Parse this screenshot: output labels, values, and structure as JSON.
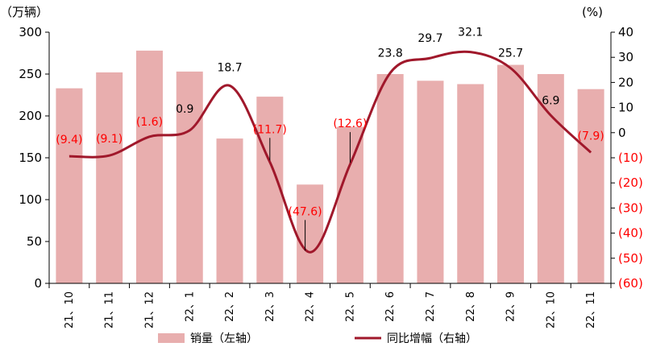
{
  "chart_data": {
    "type": "bar+line",
    "categories": [
      "21、10",
      "21、11",
      "21、12",
      "22、1",
      "22、2",
      "22、3",
      "22、4",
      "22、5",
      "22、6",
      "22、7",
      "22、8",
      "22、9",
      "22、10",
      "22、11"
    ],
    "series": [
      {
        "name": "销量（左轴）",
        "type": "bar",
        "axis": "left",
        "color": "#e8aeae",
        "values": [
          233,
          252,
          278,
          253,
          173,
          223,
          118,
          187,
          250,
          242,
          238,
          261,
          250,
          232
        ]
      },
      {
        "name": "同比增幅（右轴）",
        "type": "line",
        "axis": "right",
        "color": "#a0182b",
        "values": [
          -9.4,
          -9.1,
          -1.6,
          0.9,
          18.7,
          -11.7,
          -47.6,
          -12.6,
          23.8,
          29.7,
          32.1,
          25.7,
          6.9,
          -7.9
        ],
        "labels": [
          "(9.4)",
          "(9.1)",
          "(1.6)",
          "0.9",
          "18.7",
          "(11.7)",
          "(47.6)",
          "(12.6)",
          "23.8",
          "29.7",
          "32.1",
          "25.7",
          "6.9",
          "(7.9)"
        ]
      }
    ],
    "left_axis": {
      "unit": "（万辆）",
      "ylim": [
        0,
        300
      ],
      "ticks": [
        "0",
        "50",
        "100",
        "150",
        "200",
        "250",
        "300"
      ]
    },
    "right_axis": {
      "unit": "(%)",
      "ylim": [
        -60,
        40
      ],
      "ticks": [
        "(60)",
        "(50)",
        "(40)",
        "(30)",
        "(20)",
        "(10)",
        "0",
        "10",
        "20",
        "30",
        "40"
      ]
    },
    "legend": {
      "position": "bottom",
      "items": [
        "销量（左轴）",
        "同比增幅（右轴）"
      ]
    },
    "grid": false,
    "colors": {
      "positive_label": "#000000",
      "negative_label": "#ff0000"
    }
  }
}
